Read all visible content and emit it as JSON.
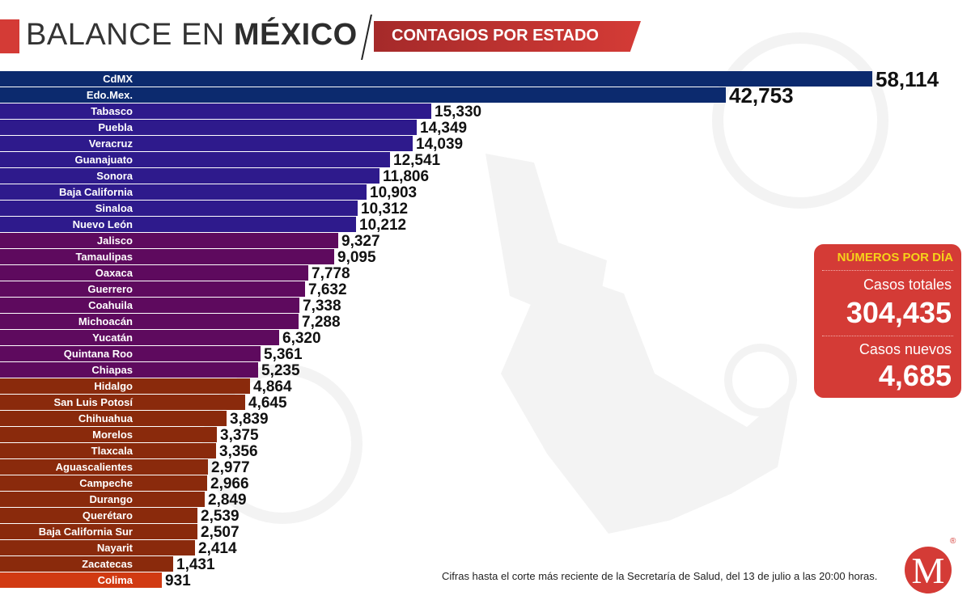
{
  "header": {
    "title_regular": "BALANCE EN ",
    "title_bold": "MÉXICO",
    "subtitle": "CONTAGIOS POR ESTADO"
  },
  "chart_data": {
    "type": "bar",
    "orientation": "horizontal",
    "title": "BALANCE EN MÉXICO — CONTAGIOS POR ESTADO",
    "xlabel": "",
    "ylabel": "",
    "categories": [
      "CdMX",
      "Edo.Mex.",
      "Tabasco",
      "Puebla",
      "Veracruz",
      "Guanajuato",
      "Sonora",
      "Baja California",
      "Sinaloa",
      "Nuevo León",
      "Jalisco",
      "Tamaulipas",
      "Oaxaca",
      "Guerrero",
      "Coahuila",
      "Michoacán",
      "Yucatán",
      "Quintana Roo",
      "Chiapas",
      "Hidalgo",
      "San Luis Potosí",
      "Chihuahua",
      "Morelos",
      "Tlaxcala",
      "Aguascalientes",
      "Campeche",
      "Durango",
      "Querétaro",
      "Baja California Sur",
      "Nayarit",
      "Zacatecas",
      "Colima"
    ],
    "values": [
      58114,
      42753,
      15330,
      14349,
      14039,
      12541,
      11806,
      10903,
      10312,
      10212,
      9327,
      9095,
      7778,
      7632,
      7338,
      7288,
      6320,
      5361,
      5235,
      4864,
      4645,
      3839,
      3375,
      3356,
      2977,
      2966,
      2849,
      2539,
      2507,
      2414,
      1431,
      931
    ],
    "value_labels": [
      "58,114",
      "42,753",
      "15,330",
      "14,349",
      "14,039",
      "12,541",
      "11,806",
      "10,903",
      "10,312",
      "10,212",
      "9,327",
      "9,095",
      "7,778",
      "7,632",
      "7,338",
      "7,288",
      "6,320",
      "5,361",
      "5,235",
      "4,864",
      "4,645",
      "3,839",
      "3,375",
      "3,356",
      "2,977",
      "2,966",
      "2,849",
      "2,539",
      "2,507",
      "2,414",
      "1,431",
      "931"
    ],
    "color_groups": [
      {
        "color": "#0c2a6e",
        "from": 0,
        "to": 1
      },
      {
        "color": "#2e1a8c",
        "from": 2,
        "to": 9
      },
      {
        "color": "#5e0a5e",
        "from": 10,
        "to": 18
      },
      {
        "color": "#8a2a0c",
        "from": 19,
        "to": 30
      },
      {
        "color": "#d13a12",
        "from": 31,
        "to": 31
      }
    ],
    "grid": false,
    "legend": "none"
  },
  "panel": {
    "title": "NÚMEROS POR DÍA",
    "total_label": "Casos totales",
    "total_value": "304,435",
    "new_label": "Casos nuevos",
    "new_value": "4,685"
  },
  "footer": {
    "note": "Cifras hasta el corte más reciente de la Secretaría de Salud, del 13 de julio a las 20:00 horas.",
    "logo_letter": "M",
    "logo_reg": "®"
  }
}
